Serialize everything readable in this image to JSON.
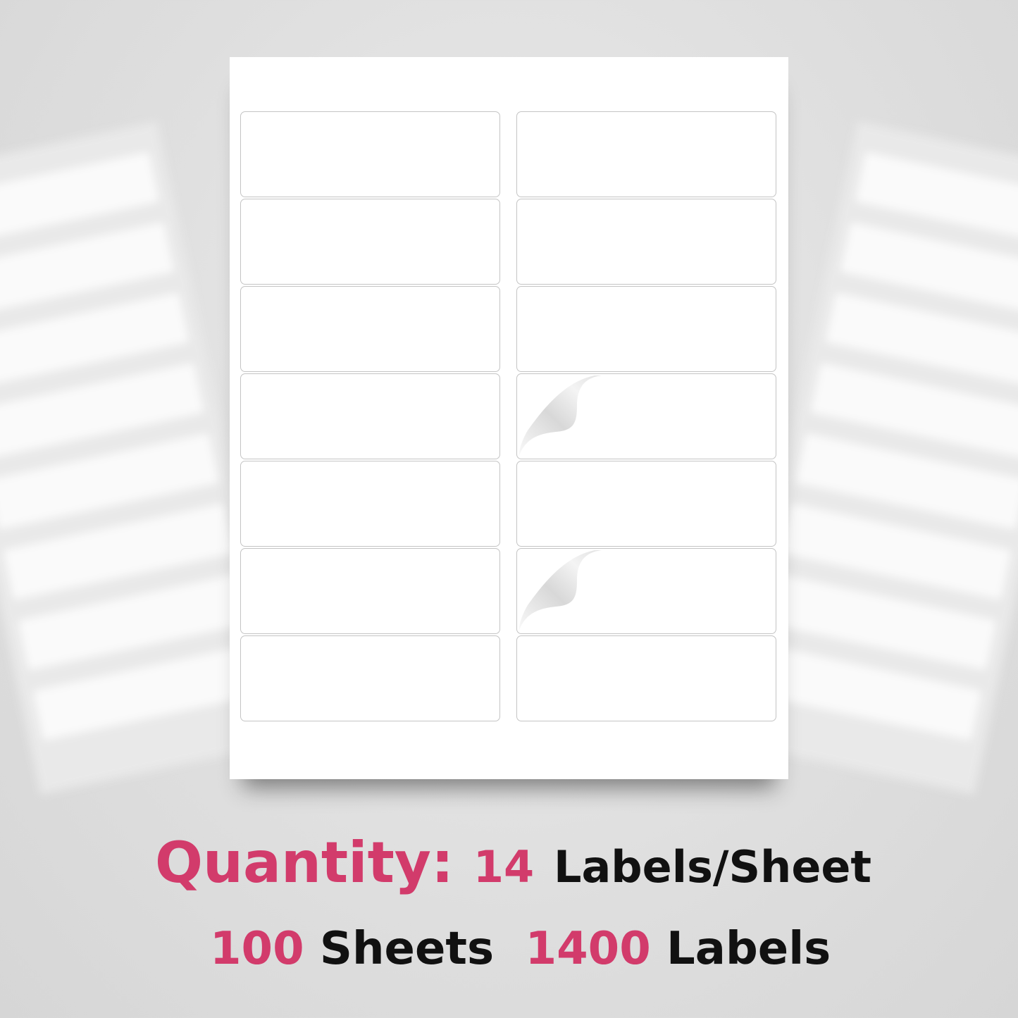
{
  "sheet": {
    "columns": 2,
    "rows": 7,
    "peeled_labels": [
      "right-row-4",
      "right-row-6"
    ]
  },
  "caption": {
    "quantity_label": "Quantity:",
    "labels_per_sheet_number": "14",
    "labels_per_sheet_text": "Labels/Sheet",
    "sheets_number": "100",
    "sheets_text": "Sheets",
    "total_number": "1400",
    "total_text": "Labels"
  },
  "colors": {
    "accent": "#d23b6b",
    "text": "#111111",
    "background": "#e0e0e0"
  }
}
